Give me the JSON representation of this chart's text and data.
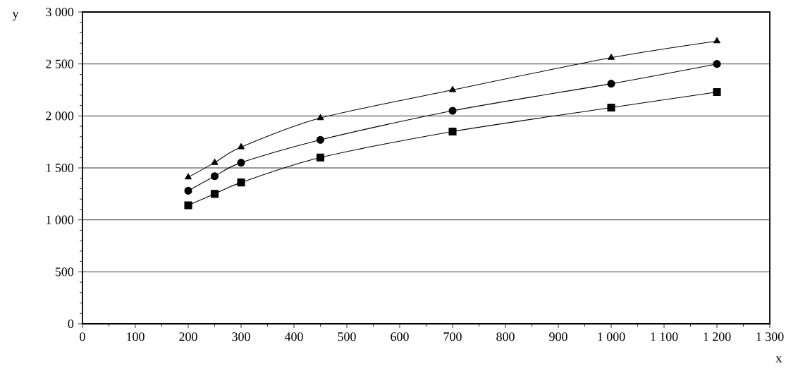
{
  "chart_data": {
    "type": "line",
    "xlabel": "x",
    "ylabel": "y",
    "x": [
      200,
      250,
      300,
      450,
      700,
      1000,
      1200
    ],
    "series": [
      {
        "color": "#000000",
        "marker": "triangle",
        "values": [
          1410,
          1550,
          1700,
          1980,
          2250,
          2560,
          2720
        ]
      },
      {
        "color": "#000000",
        "marker": "circle",
        "values": [
          1280,
          1420,
          1550,
          1770,
          2050,
          2310,
          2500
        ]
      },
      {
        "color": "#000000",
        "marker": "square",
        "values": [
          1140,
          1250,
          1360,
          1600,
          1850,
          2080,
          2230
        ]
      }
    ],
    "xlim": [
      0,
      1300
    ],
    "ylim": [
      0,
      3000
    ],
    "xticks": [
      0,
      100,
      200,
      300,
      400,
      500,
      600,
      700,
      800,
      900,
      {
        "value": 1000,
        "label": "1 000"
      },
      {
        "value": 1100,
        "label": "1 100"
      },
      {
        "value": 1200,
        "label": "1 200"
      },
      {
        "value": 1300,
        "label": "1 300"
      }
    ],
    "yticks": [
      0,
      500,
      {
        "value": 1000,
        "label": "1 000"
      },
      {
        "value": 1500,
        "label": "1 500"
      },
      {
        "value": 2000,
        "label": "2 000"
      },
      {
        "value": 2500,
        "label": "2 500"
      },
      {
        "value": 3000,
        "label": "3 000"
      }
    ],
    "grid": "y",
    "line_style": "solid"
  }
}
